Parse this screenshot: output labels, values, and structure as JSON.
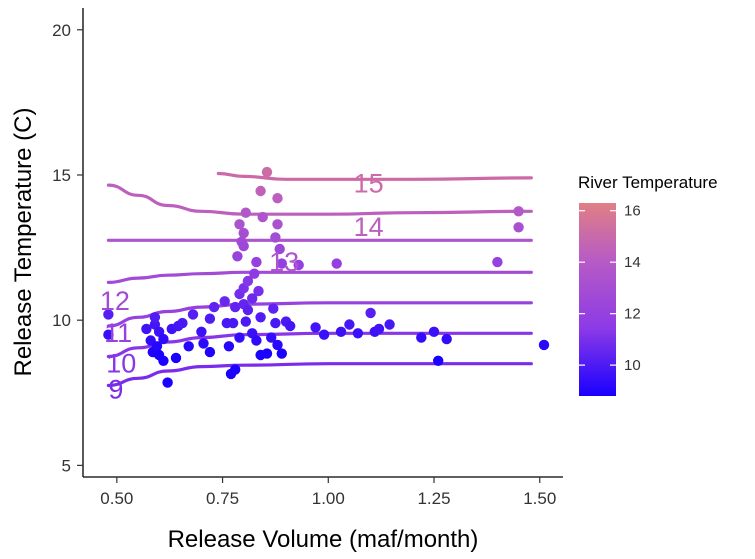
{
  "chart_data": {
    "type": "scatter",
    "xlabel": "Release Volume (maf/month)",
    "ylabel": "Release Temperature (C)",
    "xlim": [
      0.42,
      1.555
    ],
    "ylim": [
      4.6,
      20.75
    ],
    "x_ticks": [
      0.5,
      0.75,
      1.0,
      1.25,
      1.5
    ],
    "x_tick_labels": [
      "0.50",
      "0.75",
      "1.00",
      "1.25",
      "1.50"
    ],
    "y_ticks": [
      5,
      10,
      15,
      20
    ],
    "y_tick_labels": [
      "5",
      "10",
      "15",
      "20"
    ],
    "grid": false,
    "legend": {
      "title": "River Temperature",
      "position": "right",
      "type": "colorbar",
      "range": [
        8.8,
        16.3
      ],
      "ticks": [
        10,
        12,
        14,
        16
      ],
      "tick_labels": [
        "10",
        "12",
        "14",
        "16"
      ],
      "colors": [
        "#1a00ff",
        "#8c3ae6",
        "#b75bc5",
        "#e07f85"
      ]
    },
    "contours": [
      {
        "level": 9,
        "label": "9",
        "color": "#7a2bec",
        "label_at": [
          0.48,
          7.3
        ],
        "points": [
          [
            0.48,
            7.75
          ],
          [
            0.55,
            8.0
          ],
          [
            0.62,
            8.25
          ],
          [
            0.7,
            8.4
          ],
          [
            0.8,
            8.45
          ],
          [
            1.0,
            8.5
          ],
          [
            1.2,
            8.5
          ],
          [
            1.48,
            8.5
          ]
        ]
      },
      {
        "level": 10,
        "label": "10",
        "color": "#8936e8",
        "label_at": [
          0.475,
          8.2
        ],
        "points": [
          [
            0.48,
            8.75
          ],
          [
            0.55,
            9.05
          ],
          [
            0.62,
            9.25
          ],
          [
            0.7,
            9.4
          ],
          [
            0.8,
            9.5
          ],
          [
            1.0,
            9.55
          ],
          [
            1.2,
            9.55
          ],
          [
            1.48,
            9.55
          ]
        ]
      },
      {
        "level": 11,
        "label": "11",
        "color": "#9741de",
        "label_at": [
          0.47,
          9.25
        ],
        "points": [
          [
            0.48,
            9.8
          ],
          [
            0.55,
            10.1
          ],
          [
            0.62,
            10.3
          ],
          [
            0.7,
            10.45
          ],
          [
            0.8,
            10.55
          ],
          [
            1.0,
            10.6
          ],
          [
            1.2,
            10.6
          ],
          [
            1.48,
            10.6
          ]
        ]
      },
      {
        "level": 12,
        "label": "12",
        "color": "#a24bd6",
        "label_at": [
          0.46,
          10.35
        ],
        "points": [
          [
            0.48,
            11.3
          ],
          [
            0.55,
            11.45
          ],
          [
            0.62,
            11.55
          ],
          [
            0.7,
            11.6
          ],
          [
            0.8,
            11.65
          ],
          [
            1.0,
            11.65
          ],
          [
            1.2,
            11.65
          ],
          [
            1.48,
            11.65
          ]
        ]
      },
      {
        "level": 13,
        "label": "13",
        "color": "#ae55ce",
        "label_at": [
          0.86,
          11.7
        ],
        "points": [
          [
            0.48,
            12.75
          ],
          [
            0.7,
            12.75
          ],
          [
            0.9,
            12.75
          ],
          [
            1.1,
            12.75
          ],
          [
            1.3,
            12.75
          ],
          [
            1.48,
            12.75
          ]
        ]
      },
      {
        "level": 14,
        "label": "14",
        "color": "#bd60bd",
        "label_at": [
          1.06,
          12.9
        ],
        "points": [
          [
            0.48,
            14.65
          ],
          [
            0.55,
            14.3
          ],
          [
            0.62,
            13.95
          ],
          [
            0.7,
            13.75
          ],
          [
            0.8,
            13.65
          ],
          [
            1.0,
            13.65
          ],
          [
            1.2,
            13.7
          ],
          [
            1.48,
            13.75
          ]
        ]
      },
      {
        "level": 15,
        "label": "15",
        "color": "#cc6aa8",
        "label_at": [
          1.06,
          14.4
        ],
        "points": [
          [
            0.74,
            15.05
          ],
          [
            0.8,
            14.95
          ],
          [
            0.9,
            14.85
          ],
          [
            1.0,
            14.85
          ],
          [
            1.2,
            14.85
          ],
          [
            1.48,
            14.9
          ]
        ]
      }
    ],
    "points": [
      {
        "x": 0.48,
        "y": 9.5
      },
      {
        "x": 0.48,
        "y": 10.2
      },
      {
        "x": 0.57,
        "y": 9.7
      },
      {
        "x": 0.58,
        "y": 9.3
      },
      {
        "x": 0.585,
        "y": 8.9
      },
      {
        "x": 0.59,
        "y": 9.85
      },
      {
        "x": 0.595,
        "y": 9.1
      },
      {
        "x": 0.6,
        "y": 9.6
      },
      {
        "x": 0.6,
        "y": 8.8
      },
      {
        "x": 0.61,
        "y": 8.6
      },
      {
        "x": 0.61,
        "y": 9.35
      },
      {
        "x": 0.59,
        "y": 10.1
      },
      {
        "x": 0.62,
        "y": 7.85
      },
      {
        "x": 0.64,
        "y": 8.7
      },
      {
        "x": 0.63,
        "y": 9.7
      },
      {
        "x": 0.645,
        "y": 9.8
      },
      {
        "x": 0.655,
        "y": 9.9
      },
      {
        "x": 0.67,
        "y": 9.1
      },
      {
        "x": 0.68,
        "y": 10.2
      },
      {
        "x": 0.7,
        "y": 9.6
      },
      {
        "x": 0.705,
        "y": 9.2
      },
      {
        "x": 0.72,
        "y": 8.9
      },
      {
        "x": 0.72,
        "y": 10.05
      },
      {
        "x": 0.73,
        "y": 10.45
      },
      {
        "x": 0.755,
        "y": 10.65
      },
      {
        "x": 0.76,
        "y": 9.9
      },
      {
        "x": 0.765,
        "y": 9.1
      },
      {
        "x": 0.77,
        "y": 8.15
      },
      {
        "x": 0.78,
        "y": 8.3
      },
      {
        "x": 0.775,
        "y": 9.9
      },
      {
        "x": 0.78,
        "y": 10.45
      },
      {
        "x": 0.79,
        "y": 9.4
      },
      {
        "x": 0.79,
        "y": 10.9
      },
      {
        "x": 0.8,
        "y": 10.55
      },
      {
        "x": 0.8,
        "y": 11.1
      },
      {
        "x": 0.805,
        "y": 9.95
      },
      {
        "x": 0.81,
        "y": 10.35
      },
      {
        "x": 0.81,
        "y": 11.35
      },
      {
        "x": 0.82,
        "y": 9.55
      },
      {
        "x": 0.82,
        "y": 10.75
      },
      {
        "x": 0.825,
        "y": 11.6
      },
      {
        "x": 0.83,
        "y": 9.3
      },
      {
        "x": 0.835,
        "y": 11.0
      },
      {
        "x": 0.84,
        "y": 10.1
      },
      {
        "x": 0.84,
        "y": 8.8
      },
      {
        "x": 0.855,
        "y": 8.85
      },
      {
        "x": 0.865,
        "y": 9.4
      },
      {
        "x": 0.87,
        "y": 10.4
      },
      {
        "x": 0.875,
        "y": 9.9
      },
      {
        "x": 0.88,
        "y": 9.15
      },
      {
        "x": 0.89,
        "y": 8.85
      },
      {
        "x": 0.9,
        "y": 9.95
      },
      {
        "x": 0.91,
        "y": 9.8
      },
      {
        "x": 0.795,
        "y": 12.7
      },
      {
        "x": 0.8,
        "y": 13.0
      },
      {
        "x": 0.79,
        "y": 13.3
      },
      {
        "x": 0.805,
        "y": 13.7
      },
      {
        "x": 0.785,
        "y": 12.2
      },
      {
        "x": 0.8,
        "y": 12.55
      },
      {
        "x": 0.83,
        "y": 12.0
      },
      {
        "x": 0.845,
        "y": 13.55
      },
      {
        "x": 0.84,
        "y": 14.45
      },
      {
        "x": 0.855,
        "y": 15.1
      },
      {
        "x": 0.88,
        "y": 14.2
      },
      {
        "x": 0.88,
        "y": 13.3
      },
      {
        "x": 0.875,
        "y": 12.85
      },
      {
        "x": 0.885,
        "y": 12.45
      },
      {
        "x": 0.89,
        "y": 11.95
      },
      {
        "x": 0.93,
        "y": 11.9
      },
      {
        "x": 0.97,
        "y": 9.75
      },
      {
        "x": 0.99,
        "y": 9.5
      },
      {
        "x": 1.02,
        "y": 11.95
      },
      {
        "x": 1.03,
        "y": 9.6
      },
      {
        "x": 1.05,
        "y": 9.85
      },
      {
        "x": 1.07,
        "y": 9.55
      },
      {
        "x": 1.1,
        "y": 10.25
      },
      {
        "x": 1.11,
        "y": 9.6
      },
      {
        "x": 1.12,
        "y": 9.7
      },
      {
        "x": 1.145,
        "y": 9.85
      },
      {
        "x": 1.22,
        "y": 9.4
      },
      {
        "x": 1.25,
        "y": 9.6
      },
      {
        "x": 1.26,
        "y": 8.6
      },
      {
        "x": 1.28,
        "y": 9.35
      },
      {
        "x": 1.4,
        "y": 12.0
      },
      {
        "x": 1.45,
        "y": 13.75
      },
      {
        "x": 1.45,
        "y": 13.2
      },
      {
        "x": 1.51,
        "y": 9.15
      }
    ]
  }
}
